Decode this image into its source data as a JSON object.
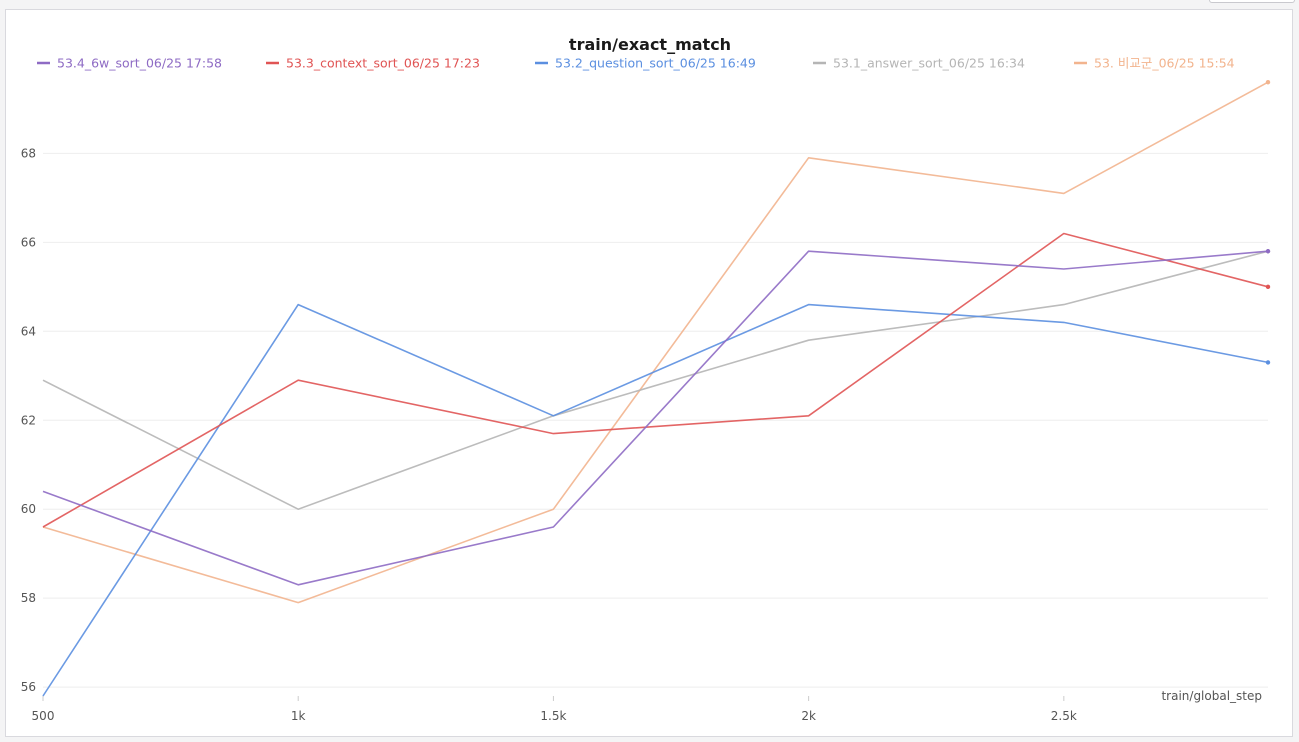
{
  "chart_data": {
    "type": "line",
    "title": "train/exact_match",
    "xlabel": "train/global_step",
    "ylabel": "",
    "x": [
      500,
      1000,
      1500,
      2000,
      2500,
      2900
    ],
    "xticks": [
      500,
      1000,
      1500,
      2000,
      2500
    ],
    "xtick_labels": [
      "500",
      "1k",
      "1.5k",
      "2k",
      "2.5k"
    ],
    "yticks": [
      56,
      58,
      60,
      62,
      64,
      66,
      68
    ],
    "xlim": [
      500,
      2900
    ],
    "ylim": [
      55.8,
      70.1
    ],
    "grid": true,
    "legend_position": "top",
    "series": [
      {
        "name": "53.4_6w_sort_06/25 17:58",
        "color": "#8e6bc4",
        "values": [
          60.4,
          58.3,
          59.6,
          65.8,
          65.4,
          65.8
        ]
      },
      {
        "name": "53.3_context_sort_06/25 17:23",
        "color": "#e05454",
        "values": [
          59.6,
          62.9,
          61.7,
          62.1,
          66.2,
          65.0
        ]
      },
      {
        "name": "53.2_question_sort_06/25 16:49",
        "color": "#5b8fe0",
        "values": [
          55.8,
          64.6,
          62.1,
          64.6,
          64.2,
          63.3
        ]
      },
      {
        "name": "53.1_answer_sort_06/25 16:34",
        "color": "#b5b5b5",
        "values": [
          62.9,
          60.0,
          62.1,
          63.8,
          64.6,
          65.8
        ]
      },
      {
        "name": "53. 비교군_06/25 15:54",
        "color": "#f2b48e",
        "values": [
          59.6,
          57.9,
          60.0,
          67.9,
          67.1,
          69.6
        ]
      }
    ]
  }
}
